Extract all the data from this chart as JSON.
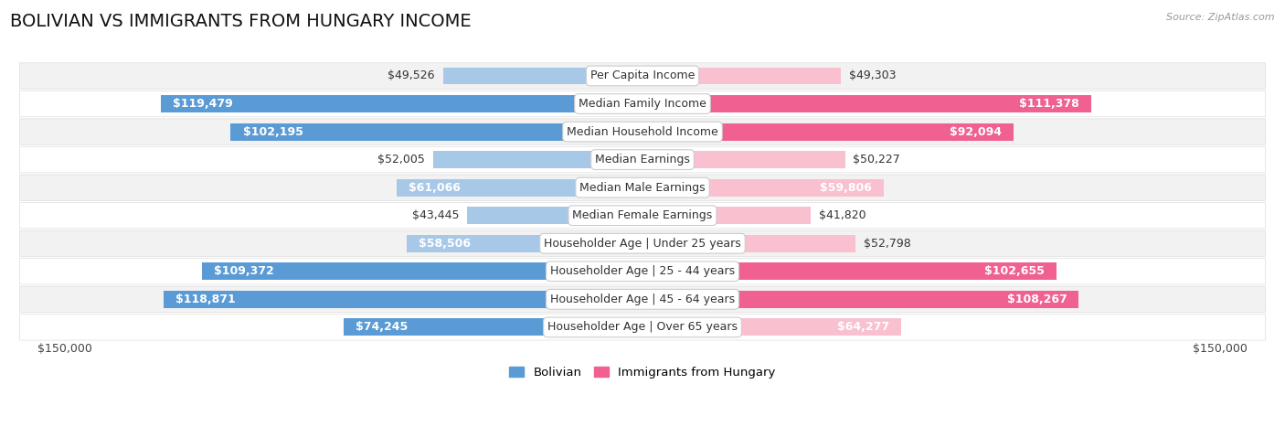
{
  "title": "BOLIVIAN VS IMMIGRANTS FROM HUNGARY INCOME",
  "source": "Source: ZipAtlas.com",
  "categories": [
    "Per Capita Income",
    "Median Family Income",
    "Median Household Income",
    "Median Earnings",
    "Median Male Earnings",
    "Median Female Earnings",
    "Householder Age | Under 25 years",
    "Householder Age | 25 - 44 years",
    "Householder Age | 45 - 64 years",
    "Householder Age | Over 65 years"
  ],
  "bolivian": [
    49526,
    119479,
    102195,
    52005,
    61066,
    43445,
    58506,
    109372,
    118871,
    74245
  ],
  "hungary": [
    49303,
    111378,
    92094,
    50227,
    59806,
    41820,
    52798,
    102655,
    108267,
    64277
  ],
  "bolivian_labels": [
    "$49,526",
    "$119,479",
    "$102,195",
    "$52,005",
    "$61,066",
    "$43,445",
    "$58,506",
    "$109,372",
    "$118,871",
    "$74,245"
  ],
  "hungary_labels": [
    "$49,303",
    "$111,378",
    "$92,094",
    "$50,227",
    "$59,806",
    "$41,820",
    "$52,798",
    "$102,655",
    "$108,267",
    "$64,277"
  ],
  "bolivian_color_light": "#a8c8e8",
  "bolivian_color_dark": "#5b9bd5",
  "hungary_color_light": "#f9c0d0",
  "hungary_color_dark": "#f06090",
  "max_val": 150000,
  "bg_row_even": "#f2f2f2",
  "bg_row_odd": "#ffffff",
  "title_fontsize": 14,
  "label_fontsize": 9,
  "category_fontsize": 9,
  "axis_label": "$150,000",
  "legend_bolivian": "Bolivian",
  "legend_hungary": "Immigrants from Hungary",
  "inside_label_threshold": 70000
}
